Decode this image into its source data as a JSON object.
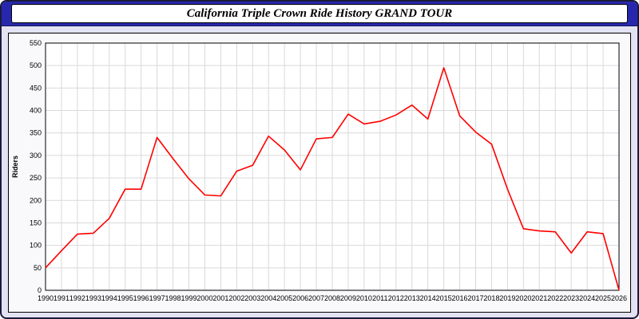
{
  "header": {
    "title": "California Triple Crown Ride History GRAND TOUR"
  },
  "colors": {
    "titlebar_blue": "#2727ad",
    "page_lavender": "#e2e2f2",
    "line_red": "#ff0000",
    "grid_gray": "#d9d9d9"
  },
  "chart_data": {
    "type": "line",
    "title": "California Triple Crown Ride History GRAND TOUR",
    "xlabel": "",
    "ylabel": "Riders",
    "ylim": [
      0,
      550
    ],
    "ytick_step": 50,
    "grid": true,
    "legend": "none",
    "line_color": "#ff0000",
    "grid_color": "#d9d9d9",
    "x": [
      1990,
      1991,
      1992,
      1993,
      1994,
      1995,
      1996,
      1997,
      1998,
      1999,
      2000,
      2001,
      2002,
      2003,
      2004,
      2005,
      2006,
      2007,
      2008,
      2009,
      2010,
      2011,
      2012,
      2013,
      2014,
      2015,
      2016,
      2017,
      2018,
      2019,
      2020,
      2021,
      2022,
      2023,
      2024,
      2025,
      2026
    ],
    "values": [
      50,
      88,
      125,
      127,
      160,
      225,
      225,
      340,
      293,
      248,
      212,
      210,
      265,
      278,
      343,
      312,
      268,
      337,
      340,
      392,
      370,
      376,
      390,
      412,
      381,
      495,
      388,
      352,
      325,
      225,
      137,
      132,
      130,
      83,
      130,
      126,
      0
    ]
  }
}
